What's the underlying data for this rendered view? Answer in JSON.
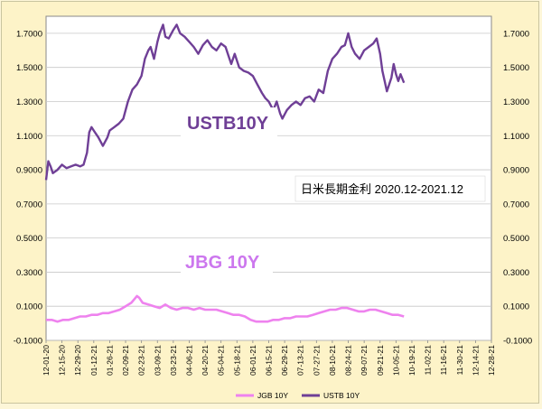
{
  "chart_data": {
    "type": "line",
    "annotation_title": "日米長期金利 2020.12-2021.12",
    "annotation_ust": "USTB10Y",
    "annotation_jgb": "JBG 10Y",
    "ylim": [
      -0.1,
      1.8
    ],
    "yticks": [
      "-0.1000",
      "0.1000",
      "0.3000",
      "0.5000",
      "0.7000",
      "0.9000",
      "1.1000",
      "1.3000",
      "1.5000",
      "1.7000"
    ],
    "xticks": [
      "12-01-20",
      "12-15-20",
      "12-29-20",
      "01-12-21",
      "01-26-21",
      "02-09-21",
      "02-23-21",
      "03-09-21",
      "03-23-21",
      "04-06-21",
      "04-20-21",
      "05-04-21",
      "05-18-21",
      "06-01-21",
      "06-15-21",
      "06-29-21",
      "07-13-21",
      "07-27-21",
      "08-10-21",
      "08-24-21",
      "09-07-21",
      "09-21-21",
      "10-05-21",
      "10-19-21",
      "11-02-21",
      "11-16-21",
      "11-30-21",
      "12-14-21",
      "12-28-21"
    ],
    "grid": "horizontal",
    "legend_position": "bottom",
    "colors": {
      "ust": "#6f3f96",
      "jgb": "#ee82ee"
    },
    "series": [
      {
        "name": "JGB 10Y",
        "key": "jgb",
        "points": [
          [
            0,
            0.02
          ],
          [
            5,
            0.02
          ],
          [
            10,
            0.01
          ],
          [
            15,
            0.02
          ],
          [
            20,
            0.02
          ],
          [
            25,
            0.03
          ],
          [
            30,
            0.04
          ],
          [
            35,
            0.04
          ],
          [
            40,
            0.05
          ],
          [
            45,
            0.05
          ],
          [
            50,
            0.06
          ],
          [
            55,
            0.06
          ],
          [
            60,
            0.07
          ],
          [
            65,
            0.08
          ],
          [
            70,
            0.1
          ],
          [
            75,
            0.12
          ],
          [
            80,
            0.16
          ],
          [
            82,
            0.15
          ],
          [
            85,
            0.12
          ],
          [
            90,
            0.11
          ],
          [
            95,
            0.1
          ],
          [
            100,
            0.09
          ],
          [
            105,
            0.11
          ],
          [
            110,
            0.09
          ],
          [
            115,
            0.08
          ],
          [
            120,
            0.09
          ],
          [
            125,
            0.09
          ],
          [
            130,
            0.08
          ],
          [
            135,
            0.09
          ],
          [
            140,
            0.08
          ],
          [
            145,
            0.08
          ],
          [
            150,
            0.08
          ],
          [
            155,
            0.07
          ],
          [
            160,
            0.06
          ],
          [
            165,
            0.05
          ],
          [
            170,
            0.05
          ],
          [
            175,
            0.04
          ],
          [
            180,
            0.02
          ],
          [
            185,
            0.01
          ],
          [
            190,
            0.01
          ],
          [
            195,
            0.01
          ],
          [
            200,
            0.02
          ],
          [
            205,
            0.02
          ],
          [
            210,
            0.03
          ],
          [
            215,
            0.03
          ],
          [
            220,
            0.04
          ],
          [
            225,
            0.04
          ],
          [
            230,
            0.04
          ],
          [
            235,
            0.05
          ],
          [
            240,
            0.06
          ],
          [
            245,
            0.07
          ],
          [
            250,
            0.08
          ],
          [
            255,
            0.08
          ],
          [
            260,
            0.09
          ],
          [
            265,
            0.09
          ],
          [
            270,
            0.08
          ],
          [
            275,
            0.07
          ],
          [
            280,
            0.07
          ],
          [
            285,
            0.08
          ],
          [
            290,
            0.08
          ],
          [
            295,
            0.07
          ],
          [
            300,
            0.06
          ],
          [
            305,
            0.05
          ],
          [
            310,
            0.05
          ],
          [
            315,
            0.04
          ]
        ]
      },
      {
        "name": "USTB 10Y",
        "key": "ust",
        "points": [
          [
            0,
            0.84
          ],
          [
            2,
            0.95
          ],
          [
            4,
            0.92
          ],
          [
            6,
            0.88
          ],
          [
            10,
            0.9
          ],
          [
            14,
            0.93
          ],
          [
            18,
            0.91
          ],
          [
            22,
            0.92
          ],
          [
            26,
            0.93
          ],
          [
            30,
            0.92
          ],
          [
            33,
            0.93
          ],
          [
            36,
            1.0
          ],
          [
            38,
            1.12
          ],
          [
            40,
            1.15
          ],
          [
            42,
            1.13
          ],
          [
            46,
            1.09
          ],
          [
            50,
            1.04
          ],
          [
            54,
            1.09
          ],
          [
            56,
            1.13
          ],
          [
            60,
            1.15
          ],
          [
            64,
            1.17
          ],
          [
            68,
            1.2
          ],
          [
            72,
            1.3
          ],
          [
            76,
            1.37
          ],
          [
            80,
            1.4
          ],
          [
            84,
            1.45
          ],
          [
            87,
            1.55
          ],
          [
            90,
            1.6
          ],
          [
            92,
            1.62
          ],
          [
            95,
            1.55
          ],
          [
            98,
            1.65
          ],
          [
            100,
            1.7
          ],
          [
            103,
            1.75
          ],
          [
            105,
            1.68
          ],
          [
            108,
            1.67
          ],
          [
            112,
            1.72
          ],
          [
            115,
            1.75
          ],
          [
            118,
            1.7
          ],
          [
            122,
            1.68
          ],
          [
            126,
            1.65
          ],
          [
            130,
            1.62
          ],
          [
            134,
            1.58
          ],
          [
            138,
            1.63
          ],
          [
            142,
            1.66
          ],
          [
            146,
            1.62
          ],
          [
            150,
            1.6
          ],
          [
            154,
            1.64
          ],
          [
            158,
            1.62
          ],
          [
            160,
            1.58
          ],
          [
            163,
            1.52
          ],
          [
            166,
            1.58
          ],
          [
            170,
            1.5
          ],
          [
            174,
            1.48
          ],
          [
            178,
            1.47
          ],
          [
            182,
            1.45
          ],
          [
            186,
            1.4
          ],
          [
            190,
            1.35
          ],
          [
            193,
            1.32
          ],
          [
            196,
            1.3
          ],
          [
            200,
            1.25
          ],
          [
            203,
            1.3
          ],
          [
            206,
            1.23
          ],
          [
            208,
            1.2
          ],
          [
            212,
            1.25
          ],
          [
            216,
            1.28
          ],
          [
            220,
            1.3
          ],
          [
            224,
            1.28
          ],
          [
            228,
            1.32
          ],
          [
            232,
            1.33
          ],
          [
            236,
            1.3
          ],
          [
            240,
            1.37
          ],
          [
            244,
            1.35
          ],
          [
            248,
            1.48
          ],
          [
            252,
            1.55
          ],
          [
            256,
            1.58
          ],
          [
            260,
            1.62
          ],
          [
            263,
            1.63
          ],
          [
            266,
            1.7
          ],
          [
            269,
            1.62
          ],
          [
            272,
            1.58
          ],
          [
            276,
            1.55
          ],
          [
            280,
            1.6
          ],
          [
            284,
            1.62
          ],
          [
            288,
            1.64
          ],
          [
            291,
            1.67
          ],
          [
            294,
            1.58
          ],
          [
            296,
            1.48
          ],
          [
            298,
            1.42
          ],
          [
            300,
            1.36
          ],
          [
            302,
            1.4
          ],
          [
            304,
            1.44
          ],
          [
            306,
            1.52
          ],
          [
            308,
            1.46
          ],
          [
            310,
            1.42
          ],
          [
            312,
            1.46
          ],
          [
            315,
            1.41
          ]
        ]
      }
    ]
  }
}
